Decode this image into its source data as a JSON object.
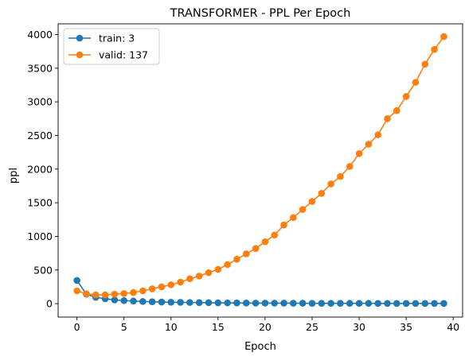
{
  "chart_data": {
    "type": "line",
    "title": "TRANSFORMER - PPL Per Epoch",
    "xlabel": "Epoch",
    "ylabel": "ppl",
    "xlim": [
      -2,
      41
    ],
    "ylim": [
      -200,
      4160
    ],
    "xticks": [
      0,
      5,
      10,
      15,
      20,
      25,
      30,
      35,
      40
    ],
    "yticks": [
      0,
      500,
      1000,
      1500,
      2000,
      2500,
      3000,
      3500,
      4000
    ],
    "grid": false,
    "legend_position": "top-left",
    "x": [
      0,
      1,
      2,
      3,
      4,
      5,
      6,
      7,
      8,
      9,
      10,
      11,
      12,
      13,
      14,
      15,
      16,
      17,
      18,
      19,
      20,
      21,
      22,
      23,
      24,
      25,
      26,
      27,
      28,
      29,
      30,
      31,
      32,
      33,
      34,
      35,
      36,
      37,
      38,
      39
    ],
    "series": [
      {
        "name": "train: 3",
        "color": "#1f77b4",
        "values": [
          345,
          140,
          95,
          72,
          55,
          45,
          38,
          32,
          28,
          24,
          21,
          19,
          17,
          15,
          14,
          12,
          11,
          10,
          9,
          8,
          8,
          7,
          7,
          6,
          6,
          5,
          5,
          5,
          4,
          4,
          4,
          4,
          3,
          3,
          3,
          3,
          3,
          3,
          3,
          3
        ]
      },
      {
        "name": "valid: 137",
        "color": "#ff7f0e",
        "values": [
          190,
          145,
          130,
          130,
          140,
          150,
          165,
          190,
          220,
          250,
          280,
          320,
          370,
          410,
          460,
          510,
          580,
          660,
          740,
          820,
          920,
          1020,
          1170,
          1280,
          1400,
          1520,
          1640,
          1780,
          1890,
          2040,
          2230,
          2370,
          2510,
          2750,
          2870,
          3080,
          3290,
          3560,
          3780,
          3970
        ]
      }
    ]
  }
}
